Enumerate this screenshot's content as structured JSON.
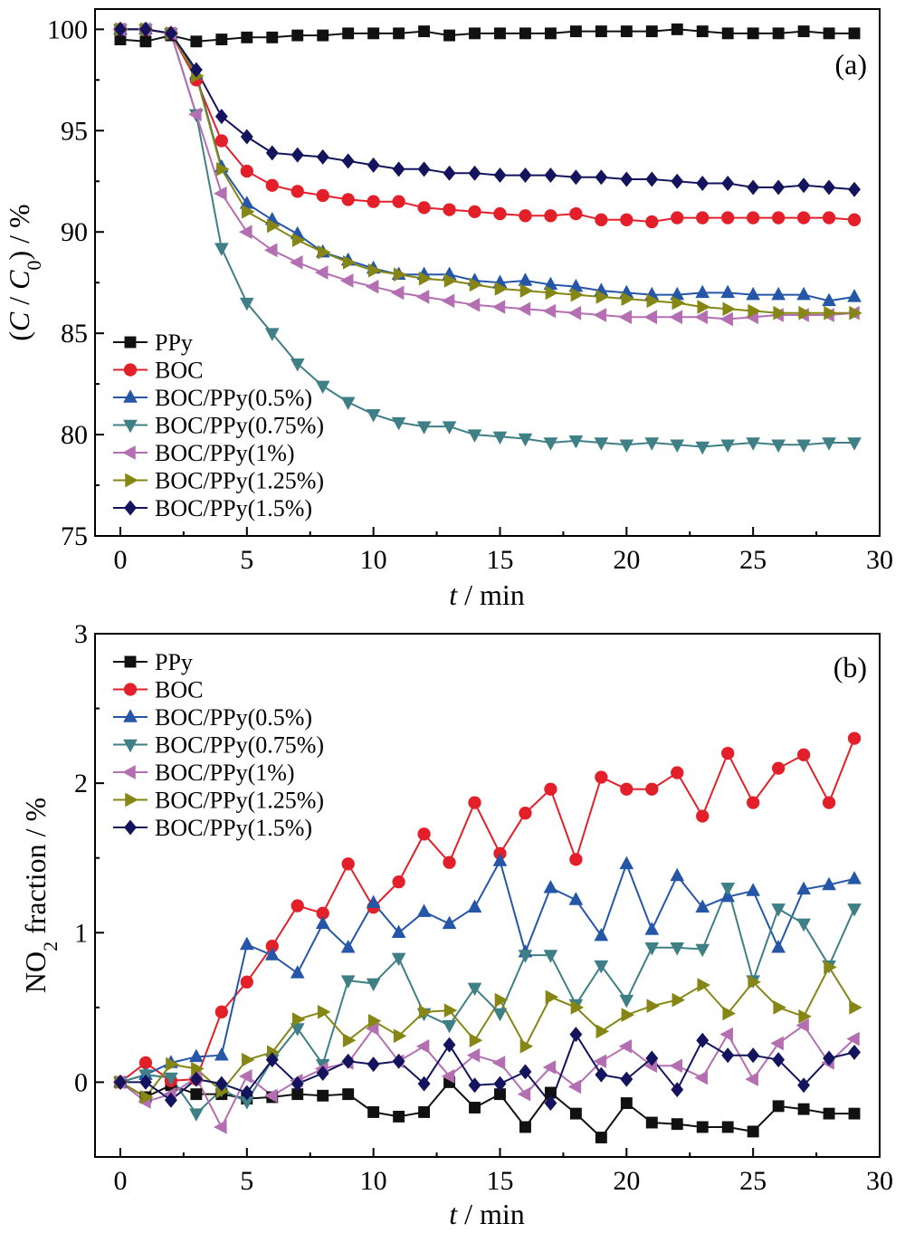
{
  "colors": {
    "PPy": "#111111",
    "BOC": "#e3202a",
    "BOC/PPy(0.5%)": "#2556a8",
    "BOC/PPy(0.75%)": "#3f7f86",
    "BOC/PPy(1%)": "#b46fb2",
    "BOC/PPy(1.25%)": "#868615",
    "BOC/PPy(1.5%)": "#14145e"
  },
  "chart_data": [
    {
      "type": "line",
      "panel_label": "(a)",
      "xlabel_var": "t",
      "xlabel_unit": " / min",
      "ylabel": "(C / C0) / %",
      "xlim": [
        -1,
        30
      ],
      "ylim": [
        75,
        101
      ],
      "xticks": [
        0,
        5,
        10,
        15,
        20,
        25,
        30
      ],
      "yticks": [
        75,
        80,
        85,
        90,
        95,
        100
      ],
      "legend_position": "bottom-left",
      "x": [
        0,
        1,
        2,
        3,
        4,
        5,
        6,
        7,
        8,
        9,
        10,
        11,
        12,
        13,
        14,
        15,
        16,
        17,
        18,
        19,
        20,
        21,
        22,
        23,
        24,
        25,
        26,
        27,
        28,
        29
      ],
      "series": [
        {
          "name": "PPy",
          "marker": "square",
          "values": [
            99.5,
            99.4,
            99.7,
            99.4,
            99.5,
            99.6,
            99.6,
            99.7,
            99.7,
            99.8,
            99.8,
            99.8,
            99.9,
            99.7,
            99.8,
            99.8,
            99.8,
            99.8,
            99.9,
            99.9,
            99.9,
            99.9,
            100.0,
            99.9,
            99.8,
            99.8,
            99.8,
            99.9,
            99.8,
            99.8
          ]
        },
        {
          "name": "BOC",
          "marker": "circle",
          "values": [
            100.0,
            100.0,
            99.8,
            97.5,
            94.5,
            93.0,
            92.3,
            92.0,
            91.8,
            91.6,
            91.5,
            91.5,
            91.2,
            91.1,
            91.0,
            90.9,
            90.8,
            90.8,
            90.9,
            90.6,
            90.6,
            90.5,
            90.7,
            90.7,
            90.7,
            90.7,
            90.7,
            90.7,
            90.7,
            90.6
          ]
        },
        {
          "name": "BOC/PPy(0.5%)",
          "marker": "triangle-up",
          "values": [
            100.0,
            100.0,
            99.8,
            97.8,
            93.2,
            91.4,
            90.6,
            89.9,
            89.0,
            88.6,
            88.2,
            87.9,
            87.9,
            87.9,
            87.6,
            87.5,
            87.6,
            87.4,
            87.3,
            87.1,
            87.0,
            86.9,
            86.9,
            87.0,
            87.0,
            86.9,
            86.9,
            86.9,
            86.6,
            86.8
          ]
        },
        {
          "name": "BOC/PPy(0.75%)",
          "marker": "triangle-down",
          "values": [
            100.0,
            100.0,
            99.8,
            95.8,
            89.2,
            86.5,
            85.0,
            83.5,
            82.4,
            81.6,
            81.0,
            80.6,
            80.4,
            80.4,
            80.0,
            79.9,
            79.8,
            79.6,
            79.7,
            79.6,
            79.5,
            79.6,
            79.5,
            79.4,
            79.5,
            79.6,
            79.5,
            79.5,
            79.6,
            79.6
          ]
        },
        {
          "name": "BOC/PPy(1%)",
          "marker": "triangle-left",
          "values": [
            100.0,
            100.0,
            99.8,
            95.8,
            91.9,
            90.0,
            89.1,
            88.5,
            88.0,
            87.6,
            87.3,
            87.0,
            86.8,
            86.6,
            86.4,
            86.3,
            86.2,
            86.1,
            86.0,
            85.9,
            85.8,
            85.8,
            85.8,
            85.8,
            85.7,
            85.8,
            85.9,
            85.9,
            85.9,
            86.0
          ]
        },
        {
          "name": "BOC/PPy(1.25%)",
          "marker": "triangle-right",
          "values": [
            100.0,
            100.0,
            99.8,
            97.7,
            93.1,
            91.0,
            90.3,
            89.6,
            89.0,
            88.5,
            88.1,
            87.9,
            87.7,
            87.6,
            87.4,
            87.2,
            87.1,
            87.0,
            86.9,
            86.8,
            86.7,
            86.6,
            86.5,
            86.3,
            86.2,
            86.1,
            86.0,
            86.0,
            86.0,
            86.0
          ]
        },
        {
          "name": "BOC/PPy(1.5%)",
          "marker": "diamond",
          "values": [
            100.0,
            100.0,
            99.8,
            98.0,
            95.7,
            94.7,
            93.9,
            93.8,
            93.7,
            93.5,
            93.3,
            93.1,
            93.1,
            92.9,
            92.9,
            92.8,
            92.8,
            92.8,
            92.7,
            92.7,
            92.6,
            92.6,
            92.5,
            92.4,
            92.4,
            92.2,
            92.2,
            92.3,
            92.2,
            92.1
          ]
        }
      ]
    },
    {
      "type": "line",
      "panel_label": "(b)",
      "xlabel_var": "t",
      "xlabel_unit": " / min",
      "ylabel": "NO2 fraction / %",
      "xlim": [
        -1,
        30
      ],
      "ylim": [
        -0.5,
        3
      ],
      "xticks": [
        0,
        5,
        10,
        15,
        20,
        25,
        30
      ],
      "yticks": [
        0,
        1,
        2,
        3
      ],
      "legend_position": "top-left",
      "x": [
        0,
        1,
        2,
        3,
        4,
        5,
        6,
        7,
        8,
        9,
        10,
        11,
        12,
        13,
        14,
        15,
        16,
        17,
        18,
        19,
        20,
        21,
        22,
        23,
        24,
        25,
        26,
        27,
        28,
        29
      ],
      "series": [
        {
          "name": "PPy",
          "marker": "square",
          "values": [
            0.0,
            -0.1,
            -0.02,
            -0.08,
            -0.08,
            -0.11,
            -0.1,
            -0.08,
            -0.09,
            -0.08,
            -0.2,
            -0.23,
            -0.2,
            0.0,
            -0.17,
            -0.08,
            -0.3,
            -0.07,
            -0.21,
            -0.37,
            -0.14,
            -0.27,
            -0.28,
            -0.3,
            -0.3,
            -0.33,
            -0.16,
            -0.18,
            -0.21,
            -0.21
          ]
        },
        {
          "name": "BOC",
          "marker": "circle",
          "values": [
            0.0,
            0.13,
            0.01,
            0.02,
            0.47,
            0.67,
            0.91,
            1.18,
            1.13,
            1.46,
            1.17,
            1.34,
            1.66,
            1.47,
            1.87,
            1.53,
            1.8,
            1.96,
            1.49,
            2.04,
            1.96,
            1.96,
            2.07,
            1.78,
            2.2,
            1.87,
            2.1,
            2.19,
            1.87,
            2.3
          ]
        },
        {
          "name": "BOC/PPy(0.5%)",
          "marker": "triangle-up",
          "values": [
            0.0,
            0.05,
            0.13,
            0.17,
            0.18,
            0.92,
            0.85,
            0.73,
            1.06,
            0.9,
            1.2,
            1.0,
            1.14,
            1.06,
            1.17,
            1.48,
            0.87,
            1.3,
            1.22,
            0.98,
            1.46,
            1.02,
            1.38,
            1.17,
            1.24,
            1.28,
            0.9,
            1.29,
            1.32,
            1.36
          ]
        },
        {
          "name": "BOC/PPy(0.75%)",
          "marker": "triangle-down",
          "values": [
            0.0,
            0.05,
            0.03,
            -0.21,
            -0.05,
            -0.13,
            0.15,
            0.36,
            0.12,
            0.68,
            0.66,
            0.83,
            0.46,
            0.38,
            0.63,
            0.46,
            0.85,
            0.85,
            0.52,
            0.78,
            0.55,
            0.9,
            0.9,
            0.89,
            1.3,
            0.68,
            1.16,
            1.06,
            0.78,
            1.16
          ]
        },
        {
          "name": "BOC/PPy(1%)",
          "marker": "triangle-left",
          "values": [
            0.0,
            -0.13,
            -0.08,
            0.03,
            -0.3,
            0.04,
            -0.09,
            0.01,
            0.09,
            0.13,
            0.36,
            0.14,
            0.24,
            0.04,
            0.18,
            0.13,
            -0.08,
            0.1,
            -0.03,
            0.14,
            0.24,
            0.11,
            0.11,
            0.03,
            0.32,
            0.02,
            0.26,
            0.38,
            0.13,
            0.29
          ]
        },
        {
          "name": "BOC/PPy(1.25%)",
          "marker": "triangle-right",
          "values": [
            0.0,
            -0.1,
            0.12,
            0.09,
            -0.06,
            0.15,
            0.2,
            0.42,
            0.47,
            0.28,
            0.41,
            0.31,
            0.47,
            0.48,
            0.28,
            0.55,
            0.24,
            0.57,
            0.5,
            0.34,
            0.45,
            0.51,
            0.55,
            0.65,
            0.46,
            0.67,
            0.5,
            0.44,
            0.77,
            0.5
          ]
        },
        {
          "name": "BOC/PPy(1.5%)",
          "marker": "diamond",
          "values": [
            0.0,
            0.0,
            -0.12,
            0.02,
            -0.01,
            -0.07,
            0.15,
            -0.01,
            0.06,
            0.14,
            0.12,
            0.14,
            -0.01,
            0.25,
            -0.02,
            -0.01,
            0.07,
            -0.14,
            0.32,
            0.05,
            0.02,
            0.16,
            -0.05,
            0.28,
            0.18,
            0.18,
            0.15,
            -0.02,
            0.16,
            0.2
          ]
        }
      ]
    }
  ]
}
